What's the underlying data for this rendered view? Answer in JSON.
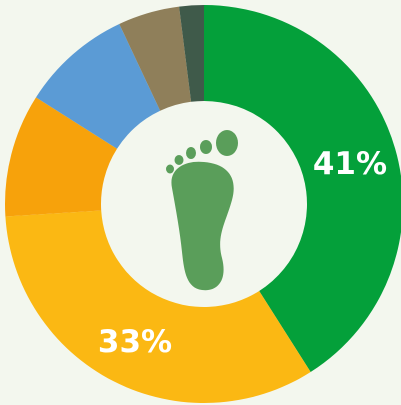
{
  "chart_data": {
    "type": "donut",
    "values": [
      41,
      33,
      10,
      9,
      5,
      2
    ],
    "value_labels": [
      "41%",
      "33%",
      null,
      null,
      null,
      null
    ],
    "colors": [
      "#04a03a",
      "#fbb813",
      "#f7a20b",
      "#5b9bd5",
      "#8f7f5a",
      "#3f5a4a"
    ]
  }
}
